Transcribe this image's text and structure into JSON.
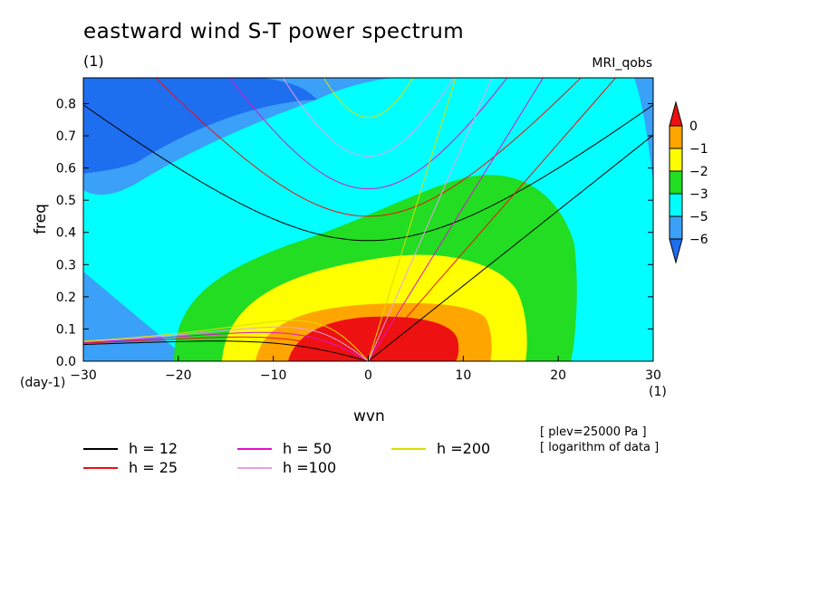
{
  "chart_data": {
    "type": "heatmap",
    "title": "eastward wind S-T power spectrum",
    "subtitle_left": "(1)",
    "subtitle_right": "MRI_qobs",
    "xlabel": "wvn",
    "ylabel": "freq",
    "x_unit": "(1)",
    "y_unit": "(day-1)",
    "xlim": [
      -30,
      30
    ],
    "ylim": [
      0,
      0.88
    ],
    "x_ticks": [
      -30,
      -20,
      -10,
      0,
      10,
      20,
      30
    ],
    "y_ticks": [
      0.0,
      0.1,
      0.2,
      0.3,
      0.4,
      0.5,
      0.6,
      0.7,
      0.8
    ],
    "y_tick_labels": [
      "0.0",
      "0.1",
      "0.2",
      "0.3",
      "0.4",
      "0.5",
      "0.6",
      "0.7",
      "0.8"
    ],
    "colorbar": {
      "labels": [
        "0",
        "−1",
        "−2",
        "−3",
        "−5",
        "−6"
      ],
      "levels": [
        -6,
        -5,
        -3,
        -2,
        -1,
        0
      ],
      "colors": [
        "#1e6ef0",
        "#3aa0f8",
        "#00ffff",
        "#22dd22",
        "#ffff00",
        "#ffa500",
        "#ee1111"
      ]
    },
    "notes": [
      "[ plev=25000 Pa ]",
      "[ logarithm of data ]"
    ],
    "dispersion_curves": [
      {
        "label": "h = 12",
        "h": 12,
        "color": "#000000"
      },
      {
        "label": "h = 25",
        "h": 25,
        "color": "#ee1111"
      },
      {
        "label": "h = 50",
        "h": 50,
        "color": "#dd11cc"
      },
      {
        "label": "h =100",
        "h": 100,
        "color": "#e8a0e8"
      },
      {
        "label": "h =200",
        "h": 200,
        "color": "#dddd00"
      }
    ]
  }
}
